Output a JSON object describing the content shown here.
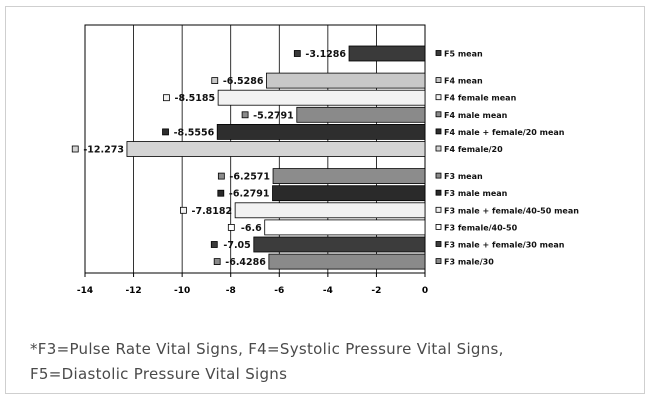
{
  "chart_data": {
    "type": "bar",
    "orientation": "horizontal",
    "xlim": [
      -14,
      0
    ],
    "x_ticks": [
      "-14",
      "-12",
      "-10",
      "-8",
      "-6",
      "-4",
      "-2",
      "0"
    ],
    "grid": true,
    "legend": "right",
    "bars": [
      {
        "label": "F5 mean",
        "value": -3.1286,
        "value_label": "-3.1286",
        "fill": "#3a3a3a",
        "group": 0
      },
      {
        "label": "F4 mean",
        "value": -6.5286,
        "value_label": "-6.5286",
        "fill": "#c8c8c8",
        "group": 1
      },
      {
        "label": "F4 female mean",
        "value": -8.5185,
        "value_label": "-8.5185",
        "fill": "#f2f2f2",
        "group": 1
      },
      {
        "label": "F4 male mean",
        "value": -5.2791,
        "value_label": "-5.2791",
        "fill": "#8a8a8a",
        "group": 1
      },
      {
        "label": "F4 male + female/20 mean",
        "value": -8.5556,
        "value_label": "-8.5556",
        "fill": "#2e2e2e",
        "group": 1
      },
      {
        "label": "F4 female/20",
        "value": -12.273,
        "value_label": "-12.273",
        "fill": "#d4d4d4",
        "group": 1
      },
      {
        "label": "F3 mean",
        "value": -6.2571,
        "value_label": "-6.2571",
        "fill": "#8c8c8c",
        "group": 2
      },
      {
        "label": "F3 male mean",
        "value": -6.2791,
        "value_label": "-6.2791",
        "fill": "#2a2a2a",
        "group": 2
      },
      {
        "label": "F3 male + female/40-50 mean",
        "value": -7.8182,
        "value_label": "-7.8182",
        "fill": "#f2f2f2",
        "group": 2
      },
      {
        "label": "F3 female/40-50",
        "value": -6.6,
        "value_label": "-6.6",
        "fill": "#ffffff",
        "group": 2
      },
      {
        "label": "F3 male + female/30 mean",
        "value": -7.05,
        "value_label": "-7.05",
        "fill": "#3c3c3c",
        "group": 2
      },
      {
        "label": "F3 male/30",
        "value": -6.4286,
        "value_label": "-6.4286",
        "fill": "#8a8a8a",
        "group": 2
      }
    ]
  },
  "caption": {
    "line1": "*F3=Pulse Rate Vital Signs, F4=Systolic Pressure Vital Signs,",
    "line2": "F5=Diastolic Pressure Vital Signs"
  }
}
